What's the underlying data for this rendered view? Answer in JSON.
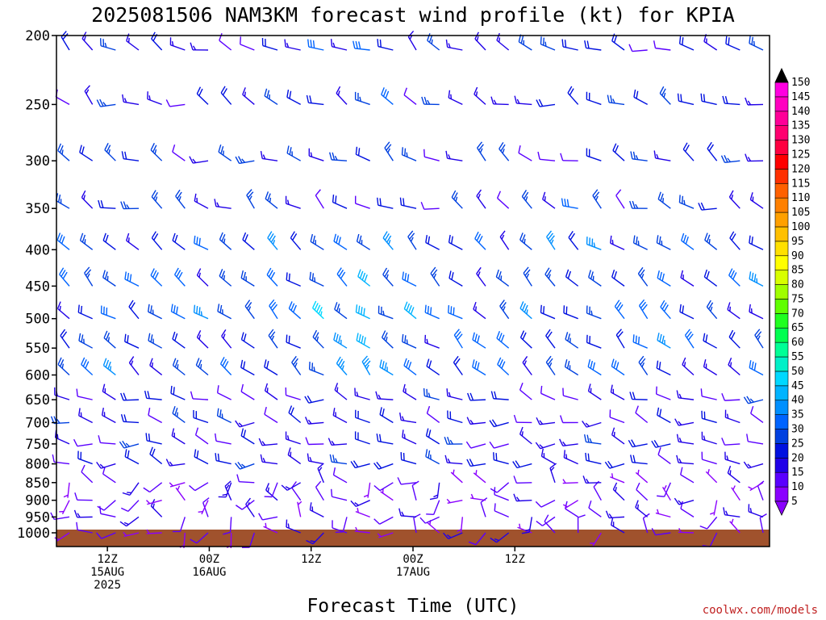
{
  "chart_data": {
    "type": "wind-barb-profile",
    "title": "2025081506 NAM3KM forecast wind profile (kt) for KPIA",
    "xlabel": "Forecast Time (UTC)",
    "credit": "coolwx.com/models",
    "y_axis": {
      "ticks": [
        200,
        250,
        300,
        350,
        400,
        450,
        500,
        550,
        600,
        650,
        700,
        750,
        800,
        850,
        900,
        950,
        1000
      ],
      "scale": "log-pressure",
      "range_hpa": [
        1000,
        200
      ]
    },
    "x_axis": {
      "range_forecast_hours": [
        0,
        84
      ],
      "ticks": [
        {
          "hour": 6,
          "lines": [
            "12Z",
            "15AUG",
            "2025"
          ]
        },
        {
          "hour": 18,
          "lines": [
            "00Z",
            "16AUG"
          ]
        },
        {
          "hour": 30,
          "lines": [
            "12Z"
          ]
        },
        {
          "hour": 42,
          "lines": [
            "00Z",
            "17AUG"
          ]
        },
        {
          "hour": 54,
          "lines": [
            "12Z"
          ]
        }
      ]
    },
    "colorbar": {
      "values": [
        5,
        10,
        15,
        20,
        25,
        30,
        35,
        40,
        45,
        50,
        55,
        60,
        65,
        70,
        75,
        80,
        85,
        90,
        95,
        100,
        105,
        110,
        115,
        120,
        125,
        130,
        135,
        140,
        145,
        150
      ],
      "colors": [
        "#8a00ff",
        "#5a00ff",
        "#2000e8",
        "#0010e0",
        "#0040e0",
        "#0064ff",
        "#0090ff",
        "#00b4ff",
        "#00d8ff",
        "#00f0c8",
        "#00ff96",
        "#00ff50",
        "#20ff20",
        "#60ff00",
        "#a0ff00",
        "#d8ff00",
        "#ffff00",
        "#ffe000",
        "#ffc000",
        "#ffa000",
        "#ff8000",
        "#ff6000",
        "#ff3000",
        "#ff0000",
        "#ff0040",
        "#ff0070",
        "#ff0098",
        "#ff00c0",
        "#ff00e0",
        "#ff00ff"
      ]
    },
    "ground_color": "#a0522d",
    "wind_direction": "mostly westerly to northwesterly aloft, light and variable near surface"
  }
}
